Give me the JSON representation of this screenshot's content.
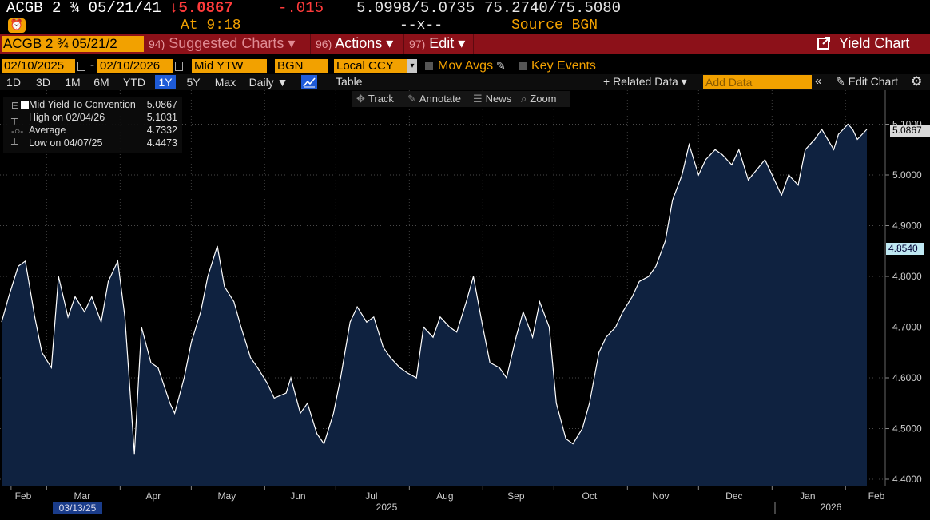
{
  "header": {
    "security": "ACGB 2 ¾ 05/21/41",
    "last_price": "↓5.0867",
    "net_change": "-.015",
    "bid_ask_price": "5.0998/5.0735",
    "bid_ask_yield": "75.2740/75.5080",
    "at_time": "At 9:18",
    "sizes": "--x--",
    "source": "Source BGN"
  },
  "function_bar": {
    "ticker": "ACGB 2 ¾ 05/21/2",
    "suggested_num": "94)",
    "suggested_label": "Suggested Charts ▾",
    "actions_num": "96)",
    "actions_label": "Actions ▾",
    "edit_num": "97)",
    "edit_label": "Edit ▾",
    "title": "Yield Chart"
  },
  "fields": {
    "start_date": "02/10/2025",
    "end_date": "02/10/2026",
    "date_separator": "-",
    "field": "Mid YTW",
    "source": "BGN",
    "currency": "Local CCY",
    "mov_avgs": "Mov Avgs",
    "key_events": "Key Events"
  },
  "range_tabs": [
    "1D",
    "3D",
    "1M",
    "6M",
    "YTD",
    "1Y",
    "5Y",
    "Max"
  ],
  "active_range": "1Y",
  "toolbar": {
    "frequency": "Daily ▼",
    "table": "Table",
    "related_data": "+ Related Data ▾",
    "add_data_placeholder": "Add Data",
    "collapse": "«",
    "edit_chart": "Edit Chart"
  },
  "tools": [
    {
      "icon": "✥",
      "label": "Track"
    },
    {
      "icon": "✎",
      "label": "Annotate"
    },
    {
      "icon": "☰",
      "label": "News"
    },
    {
      "icon": "⌕",
      "label": "Zoom"
    }
  ],
  "legend": {
    "series": {
      "label": "Mid Yield To Convention",
      "value": "5.0867"
    },
    "high": {
      "label": "High on 02/04/26",
      "value": "5.1031"
    },
    "average": {
      "label": "Average",
      "value": "4.7332"
    },
    "low": {
      "label": "Low on 04/07/25",
      "value": "4.4473"
    }
  },
  "tags": {
    "last_value": "5.0867",
    "cursor_value": "4.8540",
    "date_highlight": "03/13/25"
  },
  "colors": {
    "background": "#000000",
    "area_fill": "#0f2240",
    "line": "#ffffff",
    "accent_orange": "#f2a100",
    "function_bar": "#8c1119",
    "down_red": "#ff3b3b"
  },
  "chart_data": {
    "type": "area",
    "title": "",
    "xlabel": "",
    "ylabel": "",
    "ylim": [
      4.39,
      5.15
    ],
    "y_ticks": [
      4.4,
      4.5,
      4.6,
      4.7,
      4.8,
      4.9,
      5.0,
      5.1
    ],
    "y_tick_labels": [
      "4.4000",
      "4.5000",
      "4.6000",
      "4.7000",
      "4.8000",
      "4.9000",
      "5.0000",
      "5.1000"
    ],
    "x_month_labels": [
      "Feb",
      "Mar",
      "Apr",
      "May",
      "Jun",
      "Jul",
      "Aug",
      "Sep",
      "Oct",
      "Nov",
      "Dec",
      "Jan",
      "Feb"
    ],
    "x_year_labels": [
      "2025",
      "2026"
    ],
    "grid": true,
    "series": [
      {
        "name": "Mid Yield To Convention",
        "x": [
          "2025-02-10",
          "2025-02-13",
          "2025-02-17",
          "2025-02-20",
          "2025-02-24",
          "2025-02-27",
          "2025-03-03",
          "2025-03-06",
          "2025-03-10",
          "2025-03-13",
          "2025-03-17",
          "2025-03-20",
          "2025-03-24",
          "2025-03-27",
          "2025-03-31",
          "2025-04-03",
          "2025-04-07",
          "2025-04-10",
          "2025-04-14",
          "2025-04-17",
          "2025-04-22",
          "2025-04-24",
          "2025-04-28",
          "2025-05-01",
          "2025-05-05",
          "2025-05-08",
          "2025-05-12",
          "2025-05-15",
          "2025-05-19",
          "2025-05-22",
          "2025-05-26",
          "2025-05-29",
          "2025-06-02",
          "2025-06-05",
          "2025-06-10",
          "2025-06-12",
          "2025-06-16",
          "2025-06-19",
          "2025-06-23",
          "2025-06-26",
          "2025-06-30",
          "2025-07-03",
          "2025-07-07",
          "2025-07-10",
          "2025-07-14",
          "2025-07-17",
          "2025-07-21",
          "2025-07-24",
          "2025-07-28",
          "2025-07-31",
          "2025-08-04",
          "2025-08-07",
          "2025-08-11",
          "2025-08-14",
          "2025-08-18",
          "2025-08-21",
          "2025-08-25",
          "2025-08-28",
          "2025-09-01",
          "2025-09-04",
          "2025-09-08",
          "2025-09-11",
          "2025-09-15",
          "2025-09-18",
          "2025-09-22",
          "2025-09-25",
          "2025-09-29",
          "2025-10-02",
          "2025-10-06",
          "2025-10-09",
          "2025-10-13",
          "2025-10-16",
          "2025-10-20",
          "2025-10-23",
          "2025-10-27",
          "2025-10-30",
          "2025-11-03",
          "2025-11-06",
          "2025-11-10",
          "2025-11-13",
          "2025-11-17",
          "2025-11-20",
          "2025-11-24",
          "2025-11-27",
          "2025-12-01",
          "2025-12-04",
          "2025-12-08",
          "2025-12-11",
          "2025-12-15",
          "2025-12-18",
          "2025-12-22",
          "2025-12-29",
          "2026-01-05",
          "2026-01-08",
          "2026-01-12",
          "2026-01-15",
          "2026-01-19",
          "2026-01-22",
          "2026-01-27",
          "2026-01-29",
          "2026-02-02",
          "2026-02-04",
          "2026-02-06",
          "2026-02-10"
        ],
        "values": [
          4.71,
          4.76,
          4.82,
          4.83,
          4.72,
          4.65,
          4.62,
          4.8,
          4.72,
          4.76,
          4.73,
          4.76,
          4.71,
          4.79,
          4.83,
          4.72,
          4.45,
          4.7,
          4.63,
          4.62,
          4.55,
          4.53,
          4.6,
          4.67,
          4.73,
          4.8,
          4.86,
          4.78,
          4.75,
          4.7,
          4.64,
          4.62,
          4.59,
          4.56,
          4.57,
          4.6,
          4.53,
          4.55,
          4.49,
          4.47,
          4.53,
          4.6,
          4.71,
          4.74,
          4.71,
          4.72,
          4.66,
          4.64,
          4.62,
          4.61,
          4.6,
          4.7,
          4.68,
          4.72,
          4.7,
          4.69,
          4.75,
          4.8,
          4.7,
          4.63,
          4.62,
          4.6,
          4.68,
          4.73,
          4.68,
          4.75,
          4.7,
          4.55,
          4.48,
          4.47,
          4.5,
          4.55,
          4.65,
          4.68,
          4.7,
          4.73,
          4.76,
          4.79,
          4.8,
          4.82,
          4.87,
          4.95,
          5.0,
          5.06,
          5.0,
          5.03,
          5.05,
          5.04,
          5.02,
          5.05,
          4.99,
          5.03,
          4.96,
          5.0,
          4.98,
          5.05,
          5.07,
          5.09,
          5.05,
          5.08,
          5.1,
          5.09,
          5.07,
          5.09
        ]
      }
    ]
  }
}
